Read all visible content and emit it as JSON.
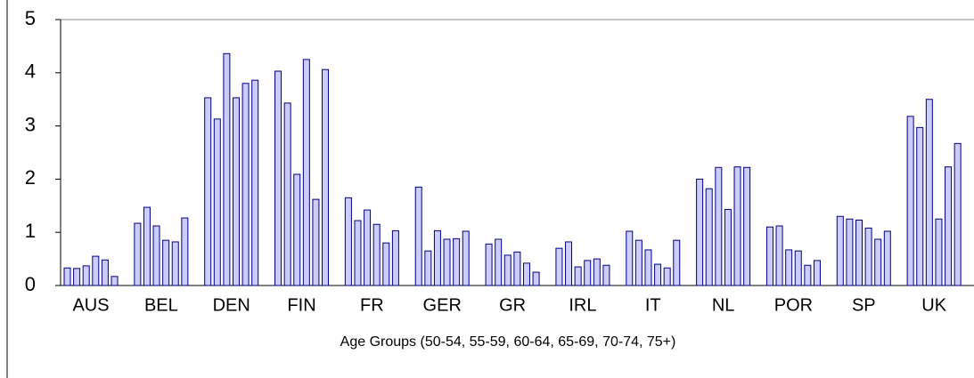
{
  "chart_data": {
    "type": "bar",
    "x_label": "Age Groups (50-54, 55-59, 60-64, 65-69, 70-74, 75+)",
    "categories": [
      "AUS",
      "BEL",
      "DEN",
      "FIN",
      "FR",
      "GER",
      "GR",
      "IRL",
      "IT",
      "NL",
      "POR",
      "SP",
      "UK"
    ],
    "series": [
      {
        "color": "#ccccff",
        "values": [
          0.33,
          1.17,
          3.53,
          4.03,
          1.65,
          1.85,
          0.78,
          0.7,
          1.02,
          2.0,
          1.1,
          1.3,
          3.18
        ]
      },
      {
        "color": "#ccccff",
        "values": [
          0.32,
          1.47,
          3.13,
          3.43,
          1.22,
          0.65,
          0.87,
          0.82,
          0.85,
          1.82,
          1.12,
          1.25,
          2.97
        ]
      },
      {
        "color": "#ccccff",
        "values": [
          0.37,
          1.12,
          4.36,
          2.09,
          1.42,
          1.03,
          0.57,
          0.35,
          0.67,
          2.22,
          0.67,
          1.23,
          3.5
        ]
      },
      {
        "color": "#ccccff",
        "values": [
          0.55,
          0.85,
          3.53,
          4.25,
          1.15,
          0.87,
          0.63,
          0.47,
          0.4,
          1.43,
          0.65,
          1.08,
          1.25
        ]
      },
      {
        "color": "#ccccff",
        "values": [
          0.48,
          0.82,
          3.8,
          1.62,
          0.8,
          0.88,
          0.42,
          0.5,
          0.33,
          2.23,
          0.38,
          0.87,
          2.23
        ]
      },
      {
        "color": "#ccccff",
        "values": [
          0.17,
          1.27,
          3.86,
          4.06,
          1.03,
          1.02,
          0.25,
          0.38,
          0.85,
          2.22,
          0.47,
          1.02,
          2.67
        ]
      }
    ],
    "edge_color": "#000080",
    "ylim": [
      0,
      5
    ],
    "yticks": [
      0,
      1,
      2,
      3,
      4,
      5
    ],
    "grid": false
  }
}
